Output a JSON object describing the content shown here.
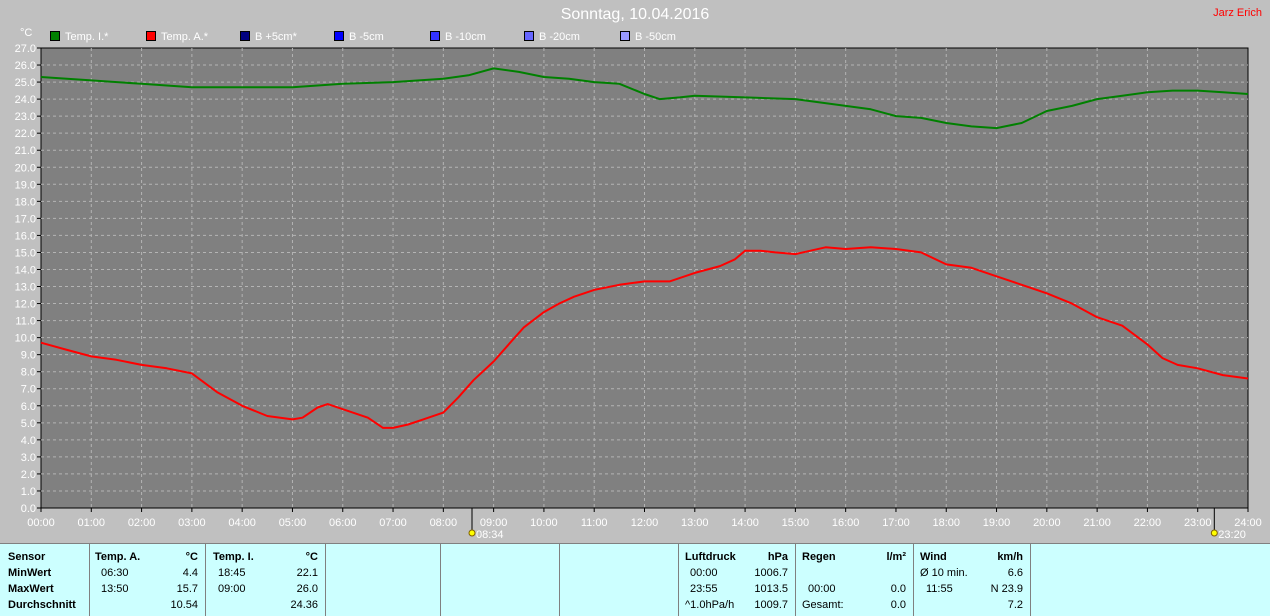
{
  "header": {
    "title": "Sonntag, 10.04.2016",
    "author": "Jarz Erich"
  },
  "legend": [
    {
      "label": "Temp. I.*",
      "color": "#008000"
    },
    {
      "label": "Temp. A.*",
      "color": "#ff0000"
    },
    {
      "label": "B +5cm*",
      "color": "#000080"
    },
    {
      "label": "B -5cm",
      "color": "#0000ff"
    },
    {
      "label": "B -10cm",
      "color": "#3333ff"
    },
    {
      "label": "B -20cm",
      "color": "#6666ff"
    },
    {
      "label": "B -50cm",
      "color": "#9999ff"
    }
  ],
  "chart_data": {
    "type": "line",
    "ylabel": "°C",
    "xlim": [
      0,
      24
    ],
    "ylim": [
      0,
      27
    ],
    "grid": true,
    "x_ticks": [
      "00:00",
      "01:00",
      "02:00",
      "03:00",
      "04:00",
      "05:00",
      "06:00",
      "07:00",
      "08:00",
      "09:00",
      "10:00",
      "11:00",
      "12:00",
      "13:00",
      "14:00",
      "15:00",
      "16:00",
      "17:00",
      "18:00",
      "19:00",
      "20:00",
      "21:00",
      "22:00",
      "23:00",
      "24:00"
    ],
    "y_ticks": [
      "0.0",
      "1.0",
      "2.0",
      "3.0",
      "4.0",
      "5.0",
      "6.0",
      "7.0",
      "8.0",
      "9.0",
      "10.0",
      "11.0",
      "12.0",
      "13.0",
      "14.0",
      "15.0",
      "16.0",
      "17.0",
      "18.0",
      "19.0",
      "20.0",
      "21.0",
      "22.0",
      "23.0",
      "24.0",
      "25.0",
      "26.0",
      "27.0"
    ],
    "markers": [
      {
        "label": "08:34",
        "x": 8.57
      },
      {
        "label": "23:20",
        "x": 23.33
      }
    ],
    "series": [
      {
        "name": "Temp. I.*",
        "color": "#008000",
        "points": [
          [
            0,
            25.3
          ],
          [
            1,
            25.1
          ],
          [
            2,
            24.9
          ],
          [
            3,
            24.7
          ],
          [
            4,
            24.7
          ],
          [
            5,
            24.7
          ],
          [
            6,
            24.9
          ],
          [
            7,
            25.0
          ],
          [
            8,
            25.2
          ],
          [
            8.5,
            25.4
          ],
          [
            9,
            25.8
          ],
          [
            9.5,
            25.6
          ],
          [
            10,
            25.3
          ],
          [
            10.5,
            25.2
          ],
          [
            11,
            25.0
          ],
          [
            11.5,
            24.9
          ],
          [
            12,
            24.3
          ],
          [
            12.3,
            24.0
          ],
          [
            12.7,
            24.1
          ],
          [
            13,
            24.2
          ],
          [
            14,
            24.1
          ],
          [
            15,
            24.0
          ],
          [
            16,
            23.6
          ],
          [
            16.5,
            23.4
          ],
          [
            17,
            23.0
          ],
          [
            17.5,
            22.9
          ],
          [
            18,
            22.6
          ],
          [
            18.5,
            22.4
          ],
          [
            19,
            22.3
          ],
          [
            19.5,
            22.6
          ],
          [
            20,
            23.3
          ],
          [
            20.5,
            23.6
          ],
          [
            21,
            24.0
          ],
          [
            21.5,
            24.2
          ],
          [
            22,
            24.4
          ],
          [
            22.5,
            24.5
          ],
          [
            23,
            24.5
          ],
          [
            23.5,
            24.4
          ],
          [
            24,
            24.3
          ]
        ]
      },
      {
        "name": "Temp. A.*",
        "color": "#ff0000",
        "points": [
          [
            0,
            9.7
          ],
          [
            0.5,
            9.3
          ],
          [
            1,
            8.9
          ],
          [
            1.5,
            8.7
          ],
          [
            2,
            8.4
          ],
          [
            2.5,
            8.2
          ],
          [
            3,
            7.9
          ],
          [
            3.5,
            6.8
          ],
          [
            4,
            6.0
          ],
          [
            4.5,
            5.4
          ],
          [
            5,
            5.2
          ],
          [
            5.2,
            5.3
          ],
          [
            5.5,
            5.9
          ],
          [
            5.7,
            6.1
          ],
          [
            6,
            5.8
          ],
          [
            6.5,
            5.3
          ],
          [
            6.8,
            4.7
          ],
          [
            7,
            4.7
          ],
          [
            7.3,
            4.9
          ],
          [
            7.6,
            5.2
          ],
          [
            8,
            5.6
          ],
          [
            8.3,
            6.5
          ],
          [
            8.6,
            7.5
          ],
          [
            9,
            8.6
          ],
          [
            9.3,
            9.6
          ],
          [
            9.6,
            10.6
          ],
          [
            10,
            11.5
          ],
          [
            10.3,
            12.0
          ],
          [
            10.6,
            12.4
          ],
          [
            11,
            12.8
          ],
          [
            11.5,
            13.1
          ],
          [
            12,
            13.3
          ],
          [
            12.5,
            13.3
          ],
          [
            13,
            13.8
          ],
          [
            13.5,
            14.2
          ],
          [
            13.8,
            14.6
          ],
          [
            14,
            15.1
          ],
          [
            14.3,
            15.1
          ],
          [
            14.6,
            15.0
          ],
          [
            15,
            14.9
          ],
          [
            15.3,
            15.1
          ],
          [
            15.6,
            15.3
          ],
          [
            16,
            15.2
          ],
          [
            16.5,
            15.3
          ],
          [
            17,
            15.2
          ],
          [
            17.5,
            15.0
          ],
          [
            18,
            14.3
          ],
          [
            18.5,
            14.1
          ],
          [
            19,
            13.6
          ],
          [
            19.5,
            13.1
          ],
          [
            20,
            12.6
          ],
          [
            20.5,
            12.0
          ],
          [
            21,
            11.2
          ],
          [
            21.5,
            10.7
          ],
          [
            22,
            9.6
          ],
          [
            22.3,
            8.8
          ],
          [
            22.6,
            8.4
          ],
          [
            23,
            8.2
          ],
          [
            23.5,
            7.8
          ],
          [
            24,
            7.6
          ]
        ]
      }
    ]
  },
  "stats": {
    "sensor": {
      "title": "Sensor",
      "min": "MinWert",
      "max": "MaxWert",
      "avg": "Durchschnitt"
    },
    "temp_a": {
      "title": "Temp. A.",
      "unit": "°C",
      "min_time": "06:30",
      "min": "4.4",
      "max_time": "13:50",
      "max": "15.7",
      "avg": "10.54"
    },
    "temp_i": {
      "title": "Temp. I.",
      "unit": "°C",
      "min_time": "18:45",
      "min": "22.1",
      "max_time": "09:00",
      "max": "26.0",
      "avg": "24.36"
    },
    "pressure": {
      "title": "Luftdruck",
      "unit": "hPa",
      "r1_label": "00:00",
      "r1_val": "1006.7",
      "r2_label": "23:55",
      "r2_val": "1013.5",
      "r3_label": "^1.0hPa/h",
      "r3_val": "1009.7"
    },
    "rain": {
      "title": "Regen",
      "unit": "l/m²",
      "r2_label": "00:00",
      "r2_val": "0.0",
      "r3_label": "Gesamt:",
      "r3_val": "0.0"
    },
    "wind": {
      "title": "Wind",
      "unit": "km/h",
      "r1_label": "Ø 10 min.",
      "r1_val": "6.6",
      "r2_label": "11:55",
      "r2_val": "N 23.9",
      "r3_val": "7.2"
    }
  }
}
